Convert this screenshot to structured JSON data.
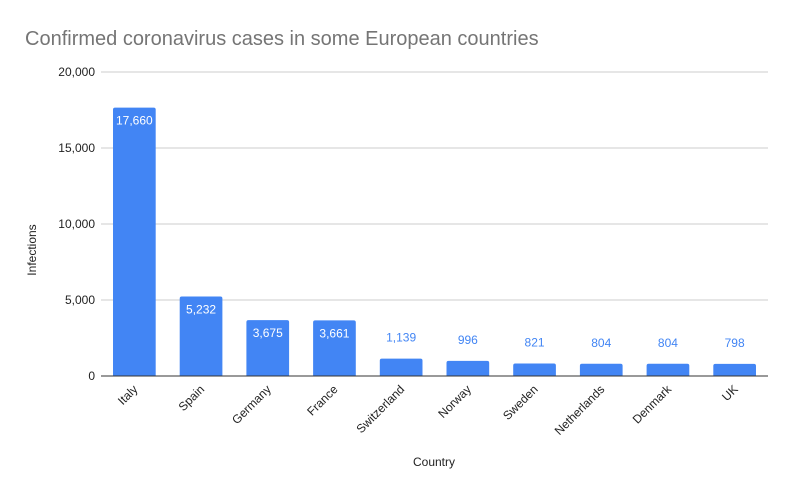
{
  "chart_data": {
    "type": "bar",
    "title": "Confirmed coronavirus cases in some European countries",
    "xlabel": "Country",
    "ylabel": "Infections",
    "categories": [
      "Italy",
      "Spain",
      "Germany",
      "France",
      "Switzerland",
      "Norway",
      "Sweden",
      "Netherlands",
      "Denmark",
      "UK"
    ],
    "values": [
      17660,
      5232,
      3675,
      3661,
      1139,
      996,
      821,
      804,
      804,
      798
    ],
    "value_labels": [
      "17,660",
      "5,232",
      "3,675",
      "3,661",
      "1,139",
      "996",
      "821",
      "804",
      "804",
      "798"
    ],
    "yticks": [
      0,
      5000,
      10000,
      15000,
      20000
    ],
    "ytick_labels": [
      "0",
      "5,000",
      "10,000",
      "15,000",
      "20,000"
    ],
    "ylim": [
      0,
      20000
    ],
    "grid": true,
    "legend": "none",
    "colors": {
      "bar": "#4285f4",
      "grid": "#cccccc",
      "axis": "#333333",
      "title": "#757575"
    }
  }
}
